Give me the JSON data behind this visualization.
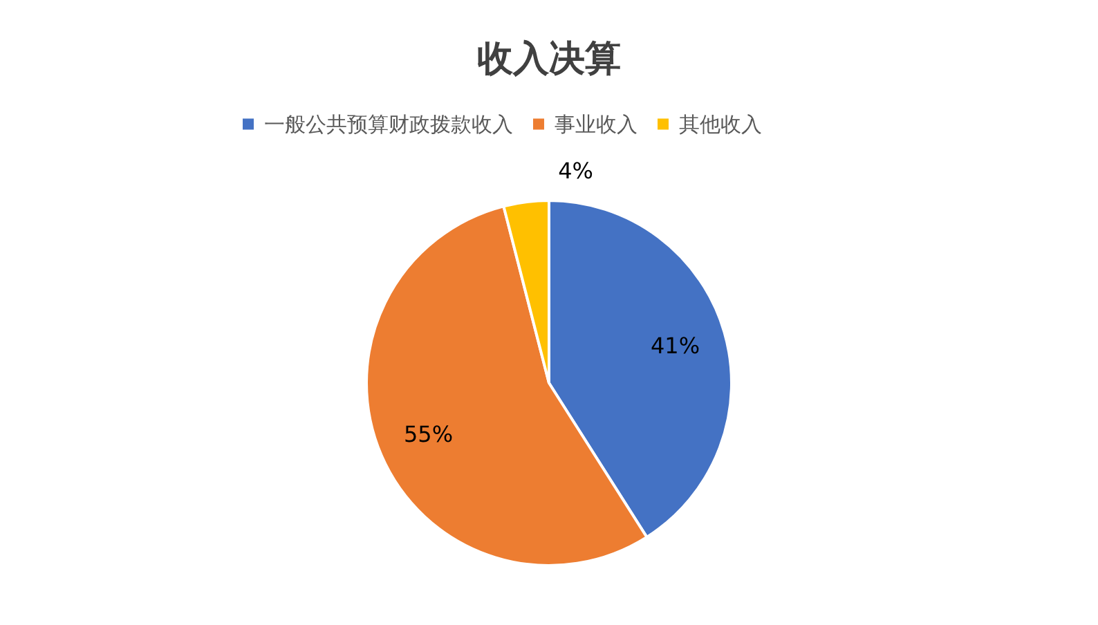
{
  "chart_data": {
    "type": "pie",
    "title": "收入决算",
    "categories": [
      "一般公共预算财政拨款收入",
      "事业收入",
      "其他收入"
    ],
    "values": [
      41,
      55,
      4
    ],
    "colors": [
      "#4472c4",
      "#ed7d31",
      "#ffc000"
    ],
    "value_labels": [
      "41%",
      "55%",
      "4%"
    ],
    "legend": "top"
  }
}
